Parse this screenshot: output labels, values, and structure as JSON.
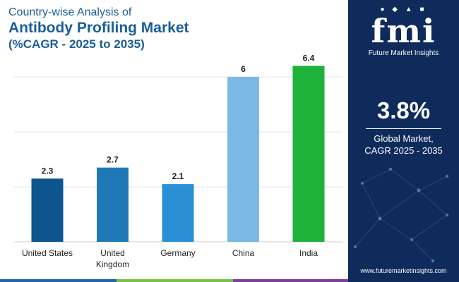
{
  "header": {
    "line1": "Country-wise Analysis of",
    "line2": "Antibody Profiling Market",
    "line3": "(%CAGR - 2025 to 2035)"
  },
  "side_panel": {
    "brand_word": "fmi",
    "brand_name": "Future Market Insights",
    "cagr_value": "3.8%",
    "cagr_caption_line1": "Global Market,",
    "cagr_caption_line2": "CAGR 2025 - 2035",
    "website": "www.futuremarketinsights.com"
  },
  "colors": {
    "title": "#1a5e9a",
    "panel_bg": "#0e2b5c",
    "footer": [
      "#1e66b0",
      "#7ac143",
      "#7b3fa0"
    ]
  },
  "chart_data": {
    "type": "bar",
    "title": "Country-wise Analysis of Antibody Profiling Market (%CAGR - 2025 to 2035)",
    "categories": [
      "United States",
      "United Kingdom",
      "Germany",
      "China",
      "India"
    ],
    "category_lines": [
      [
        "United States"
      ],
      [
        "United",
        "Kingdom"
      ],
      [
        "Germany"
      ],
      [
        "China"
      ],
      [
        "India"
      ]
    ],
    "values": [
      2.3,
      2.7,
      2.1,
      6,
      6.4
    ],
    "value_labels": [
      "2.3",
      "2.7",
      "2.1",
      "6",
      "6.4"
    ],
    "bar_colors": [
      "#0e5590",
      "#1f78b8",
      "#2b8fd6",
      "#7bb8e6",
      "#1eb23a"
    ],
    "ylim": [
      0,
      7
    ],
    "xlabel": "",
    "ylabel": "",
    "grid": true
  }
}
